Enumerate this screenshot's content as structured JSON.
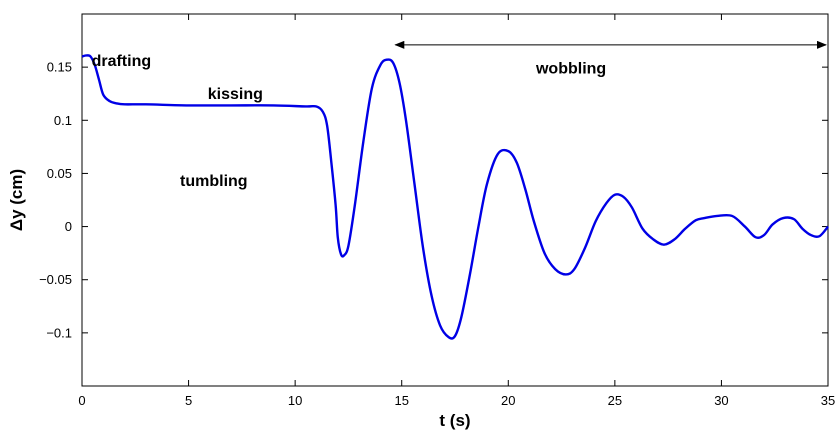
{
  "chart_data": {
    "type": "line",
    "title": "",
    "xlabel": "t (s)",
    "ylabel": "Δy (cm)",
    "xlim": [
      0,
      35
    ],
    "ylim": [
      -0.15,
      0.2
    ],
    "grid": false,
    "xticks": [
      0,
      5,
      10,
      15,
      20,
      25,
      30,
      35
    ],
    "xtick_labels": [
      "0",
      "5",
      "10",
      "15",
      "20",
      "25",
      "30",
      "35"
    ],
    "yticks": [
      -0.1,
      -0.05,
      0,
      0.05,
      0.1,
      0.15
    ],
    "ytick_labels": [
      "−0.1",
      "−0.05",
      "0",
      "0.05",
      "0.1",
      "0.15"
    ],
    "series": [
      {
        "color": "#0000e6",
        "x": [
          0,
          0.2,
          0.4,
          0.6,
          0.8,
          1.0,
          1.3,
          1.6,
          2,
          3,
          5,
          7,
          9,
          10.5,
          11.0,
          11.3,
          11.5,
          11.7,
          11.9,
          12.0,
          12.15,
          12.3,
          12.5,
          12.8,
          13.2,
          13.6,
          14.0,
          14.3,
          14.6,
          14.9,
          15.2,
          15.6,
          16.0,
          16.4,
          16.8,
          17.2,
          17.5,
          17.8,
          18.2,
          18.6,
          19.0,
          19.5,
          20.0,
          20.4,
          20.8,
          21.2,
          21.7,
          22.2,
          22.7,
          23.1,
          23.6,
          24.1,
          24.6,
          25.0,
          25.4,
          25.8,
          26.3,
          26.8,
          27.3,
          27.8,
          28.3,
          28.8,
          29.2,
          29.8,
          30.5,
          31.1,
          31.6,
          32.0,
          32.4,
          32.9,
          33.4,
          33.8,
          34.2,
          34.6,
          35.0
        ],
        "y": [
          0.16,
          0.161,
          0.16,
          0.152,
          0.138,
          0.124,
          0.118,
          0.116,
          0.115,
          0.115,
          0.114,
          0.114,
          0.114,
          0.113,
          0.113,
          0.108,
          0.095,
          0.06,
          0.02,
          -0.01,
          -0.026,
          -0.027,
          -0.018,
          0.02,
          0.08,
          0.13,
          0.152,
          0.157,
          0.154,
          0.135,
          0.1,
          0.04,
          -0.02,
          -0.065,
          -0.093,
          -0.104,
          -0.103,
          -0.085,
          -0.045,
          0.0,
          0.04,
          0.068,
          0.071,
          0.06,
          0.035,
          0.005,
          -0.025,
          -0.04,
          -0.045,
          -0.04,
          -0.02,
          0.005,
          0.022,
          0.03,
          0.028,
          0.018,
          -0.002,
          -0.012,
          -0.017,
          -0.012,
          -0.002,
          0.006,
          0.008,
          0.01,
          0.01,
          0.0,
          -0.01,
          -0.008,
          0.002,
          0.008,
          0.007,
          -0.002,
          -0.008,
          -0.009,
          0.0
        ]
      }
    ],
    "annotations": [
      {
        "text": "drafting",
        "x": 0.45,
        "y": 0.151
      },
      {
        "text": "kissing",
        "x": 5.9,
        "y": 0.12
      },
      {
        "text": "tumbling",
        "x": 4.6,
        "y": 0.038
      },
      {
        "text": "wobbling",
        "x": 21.3,
        "y": 0.144
      }
    ],
    "range_arrow": {
      "x_start": 14.7,
      "x_end": 35,
      "y": 0.171
    }
  }
}
